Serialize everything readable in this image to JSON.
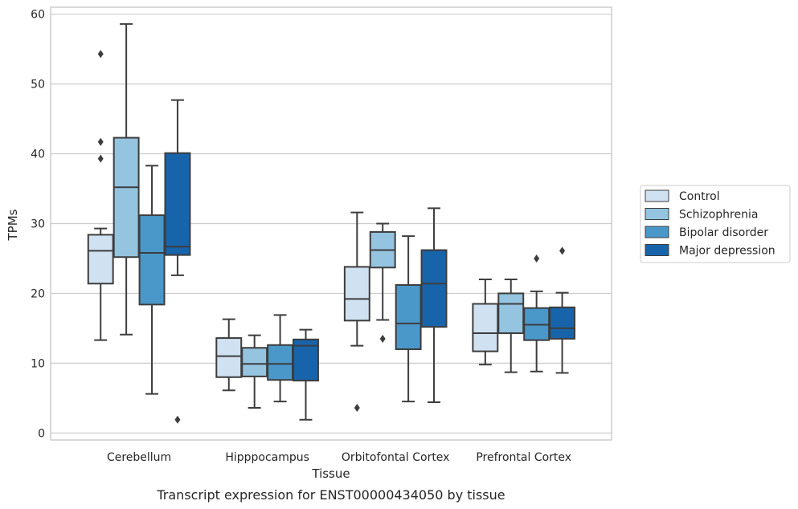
{
  "chart_data": {
    "type": "box",
    "xlabel": "Tissue",
    "ylabel": "TPMs",
    "caption": "Transcript expression for ENST00000434050 by tissue",
    "ylim": [
      -1,
      61
    ],
    "yticks": [
      0,
      10,
      20,
      30,
      40,
      50,
      60
    ],
    "grid": true,
    "legend_position": "right",
    "categories": [
      "Cerebellum",
      "Hipppocampus",
      "Orbitofontal Cortex",
      "Prefrontal Cortex"
    ],
    "series": [
      {
        "name": "Control",
        "color": "#d0e1f2",
        "boxes": [
          {
            "whislo": 13.3,
            "q1": 21.4,
            "med": 26.1,
            "q3": 28.4,
            "whishi": 29.3,
            "fliers": [
              54.3,
              41.7,
              39.3
            ]
          },
          {
            "whislo": 6.1,
            "q1": 8.0,
            "med": 11.0,
            "q3": 13.6,
            "whishi": 16.3,
            "fliers": []
          },
          {
            "whislo": 12.5,
            "q1": 16.1,
            "med": 19.2,
            "q3": 23.8,
            "whishi": 31.6,
            "fliers": [
              3.6
            ]
          },
          {
            "whislo": 9.8,
            "q1": 11.7,
            "med": 14.3,
            "q3": 18.5,
            "whishi": 22.0,
            "fliers": []
          }
        ]
      },
      {
        "name": "Schizophrenia",
        "color": "#94c4df",
        "boxes": [
          {
            "whislo": 14.1,
            "q1": 25.2,
            "med": 35.2,
            "q3": 42.3,
            "whishi": 58.6,
            "fliers": []
          },
          {
            "whislo": 3.6,
            "q1": 8.1,
            "med": 9.9,
            "q3": 12.2,
            "whishi": 14.0,
            "fliers": []
          },
          {
            "whislo": 16.2,
            "q1": 23.7,
            "med": 26.2,
            "q3": 28.8,
            "whishi": 30.0,
            "fliers": [
              13.5
            ]
          },
          {
            "whislo": 8.7,
            "q1": 14.3,
            "med": 18.5,
            "q3": 20.0,
            "whishi": 22.0,
            "fliers": []
          }
        ]
      },
      {
        "name": "Bipolar disorder",
        "color": "#4a98c9",
        "boxes": [
          {
            "whislo": 5.6,
            "q1": 18.4,
            "med": 25.8,
            "q3": 31.2,
            "whishi": 38.3,
            "fliers": []
          },
          {
            "whislo": 4.5,
            "q1": 7.6,
            "med": 9.9,
            "q3": 12.6,
            "whishi": 16.9,
            "fliers": []
          },
          {
            "whislo": 4.5,
            "q1": 12.0,
            "med": 15.7,
            "q3": 21.2,
            "whishi": 28.2,
            "fliers": []
          },
          {
            "whislo": 8.8,
            "q1": 13.3,
            "med": 15.5,
            "q3": 17.9,
            "whishi": 20.3,
            "fliers": [
              25.0
            ]
          }
        ]
      },
      {
        "name": "Major depression",
        "color": "#1764ab",
        "boxes": [
          {
            "whislo": 22.6,
            "q1": 25.5,
            "med": 26.7,
            "q3": 40.1,
            "whishi": 47.7,
            "fliers": [
              1.9
            ]
          },
          {
            "whislo": 1.9,
            "q1": 7.5,
            "med": 12.5,
            "q3": 13.4,
            "whishi": 14.8,
            "fliers": []
          },
          {
            "whislo": 4.4,
            "q1": 15.2,
            "med": 21.4,
            "q3": 26.2,
            "whishi": 32.2,
            "fliers": []
          },
          {
            "whislo": 8.6,
            "q1": 13.5,
            "med": 15.0,
            "q3": 18.0,
            "whishi": 20.1,
            "fliers": [
              26.1
            ]
          }
        ]
      }
    ]
  }
}
